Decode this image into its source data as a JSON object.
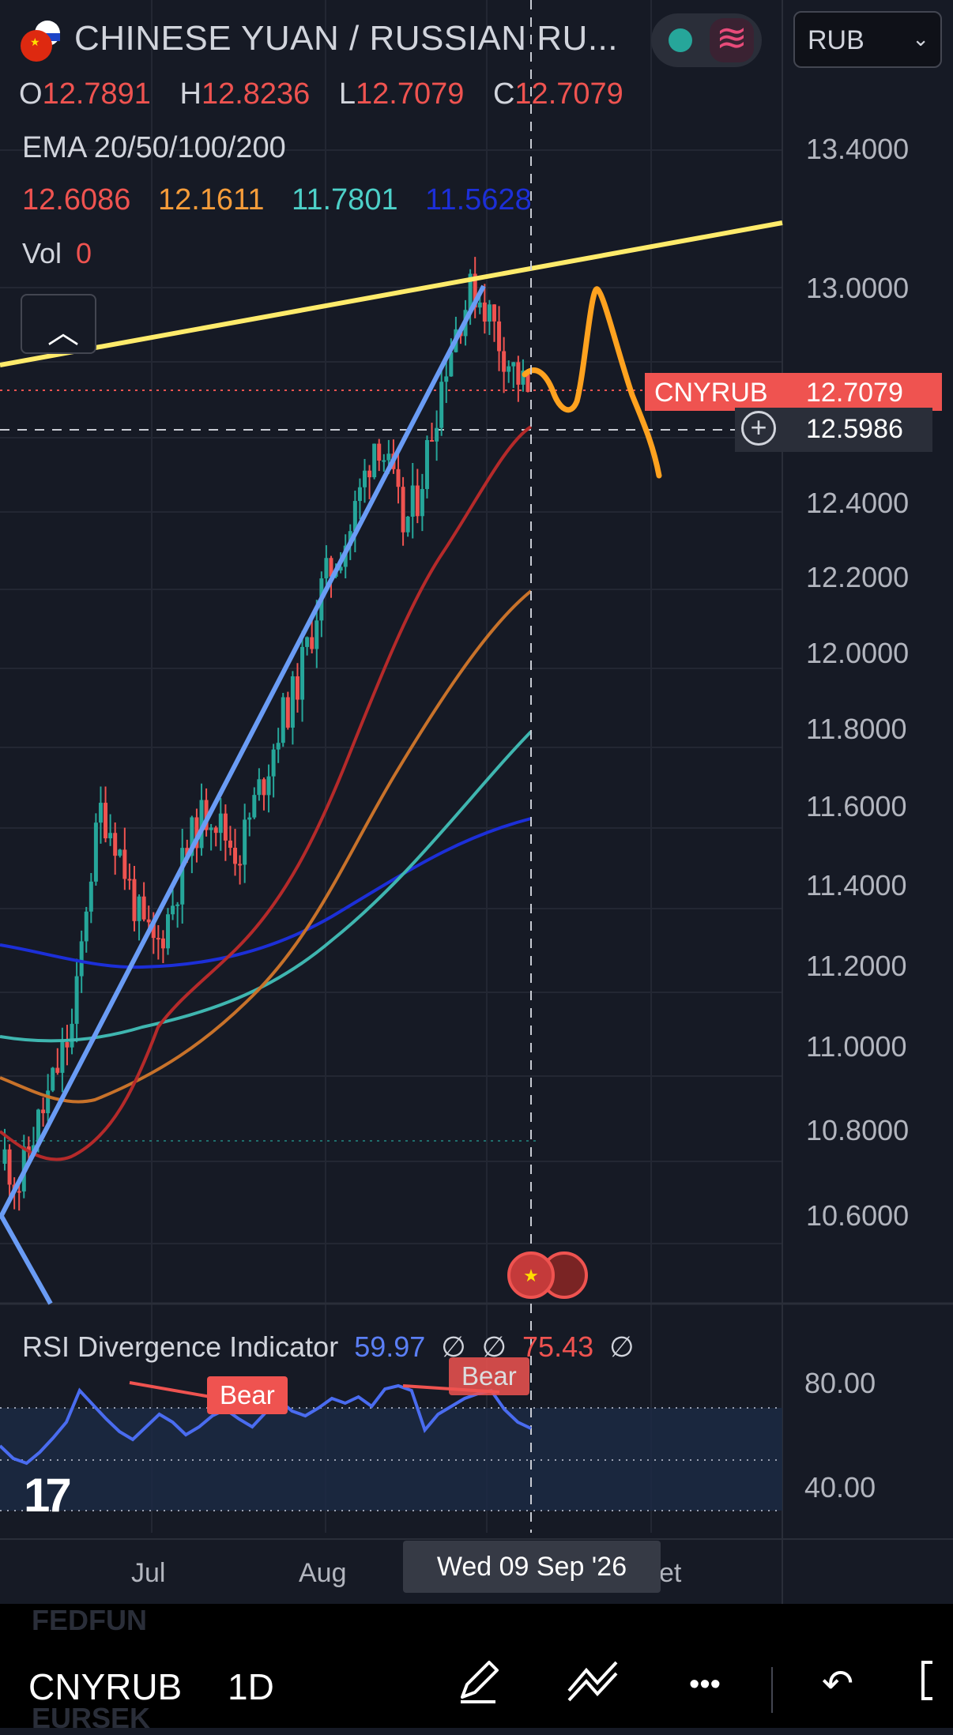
{
  "header": {
    "title": "CHINESE YUAN / RUSSIAN RU...",
    "currency_select": "RUB",
    "ohlc": [
      {
        "key": "O",
        "value": "12.7891"
      },
      {
        "key": "H",
        "value": "12.8236"
      },
      {
        "key": "L",
        "value": "12.7079"
      },
      {
        "key": "C",
        "value": "12.7079"
      }
    ],
    "ema_title": "EMA 20/50/100/200",
    "ema_values": [
      {
        "value": "12.6086",
        "color": "#ef5350"
      },
      {
        "value": "12.1611",
        "color": "#f59c3a"
      },
      {
        "value": "11.7801",
        "color": "#4dd0c8"
      },
      {
        "value": "11.5628",
        "color": "#1c2fd8"
      }
    ],
    "vol_label": "Vol",
    "vol_value": "0",
    "collapse_icon": "chevron-up-icon"
  },
  "price_axis": {
    "ticks": [
      "13.4000",
      "13.0000",
      "12.4000",
      "12.2000",
      "12.0000",
      "11.8000",
      "11.6000",
      "11.4000",
      "11.2000",
      "11.0000",
      "10.8000",
      "10.6000"
    ],
    "symbol_badge": "CNYRUB",
    "last_price": "12.7079",
    "crosshair_price": "12.5986"
  },
  "rsi": {
    "title": "RSI Divergence Indicator",
    "value": "59.97",
    "sym1": "∅",
    "sym2": "∅",
    "value2": "75.43",
    "sym3": "∅",
    "bear_label_1": "Bear",
    "bear_label_2": "Bear",
    "ticks": [
      "80.00",
      "40.00"
    ]
  },
  "time_axis": {
    "jul": "Jul",
    "aug": "Aug",
    "sep_fragment": "et",
    "tooltip": "Wed 09 Sep '26"
  },
  "bottom": {
    "ghost_top": "FEDFUN",
    "ghost_bottom": "EURSEK",
    "symbol": "CNYRUB",
    "timeframe": "1D",
    "tools": [
      "pen-icon",
      "trend-lines-icon",
      "more-icon",
      "undo-icon",
      "fullscreen-icon"
    ],
    "more_glyph": "•••",
    "undo_glyph": "↶"
  },
  "colors": {
    "background": "#161a25",
    "up": "#26a69a",
    "down": "#ef5350",
    "trend_yellow": "#ffeb6b",
    "trend_blue": "#6a9cf5",
    "drawing_orange": "#ffa21f"
  }
}
